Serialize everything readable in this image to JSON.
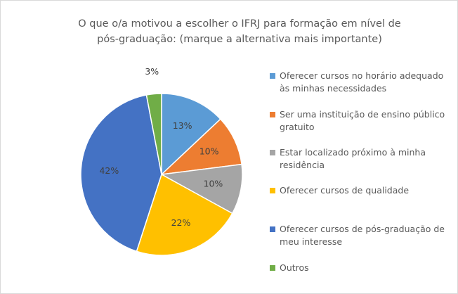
{
  "chart_data": {
    "type": "pie",
    "title": "O que o/a motivou a escolher o IFRJ para formação em nível de pós-graduação: (marque a alternativa mais importante)",
    "categories": [
      "Oferecer cursos no horário adequado às minhas necessidades",
      "Ser uma instituição de ensino público gratuito",
      "Estar localizado próximo à minha residência",
      "Oferecer cursos de qualidade",
      "Oferecer cursos de pós-graduação de meu interesse",
      "Outros"
    ],
    "values": [
      13,
      10,
      10,
      22,
      42,
      3
    ],
    "value_labels": [
      "13%",
      "10%",
      "10%",
      "22%",
      "42%",
      "3%"
    ],
    "colors": [
      "#5b9bd5",
      "#ed7d31",
      "#a5a5a5",
      "#ffc000",
      "#4472c4",
      "#70ad47"
    ],
    "legend": "right"
  }
}
